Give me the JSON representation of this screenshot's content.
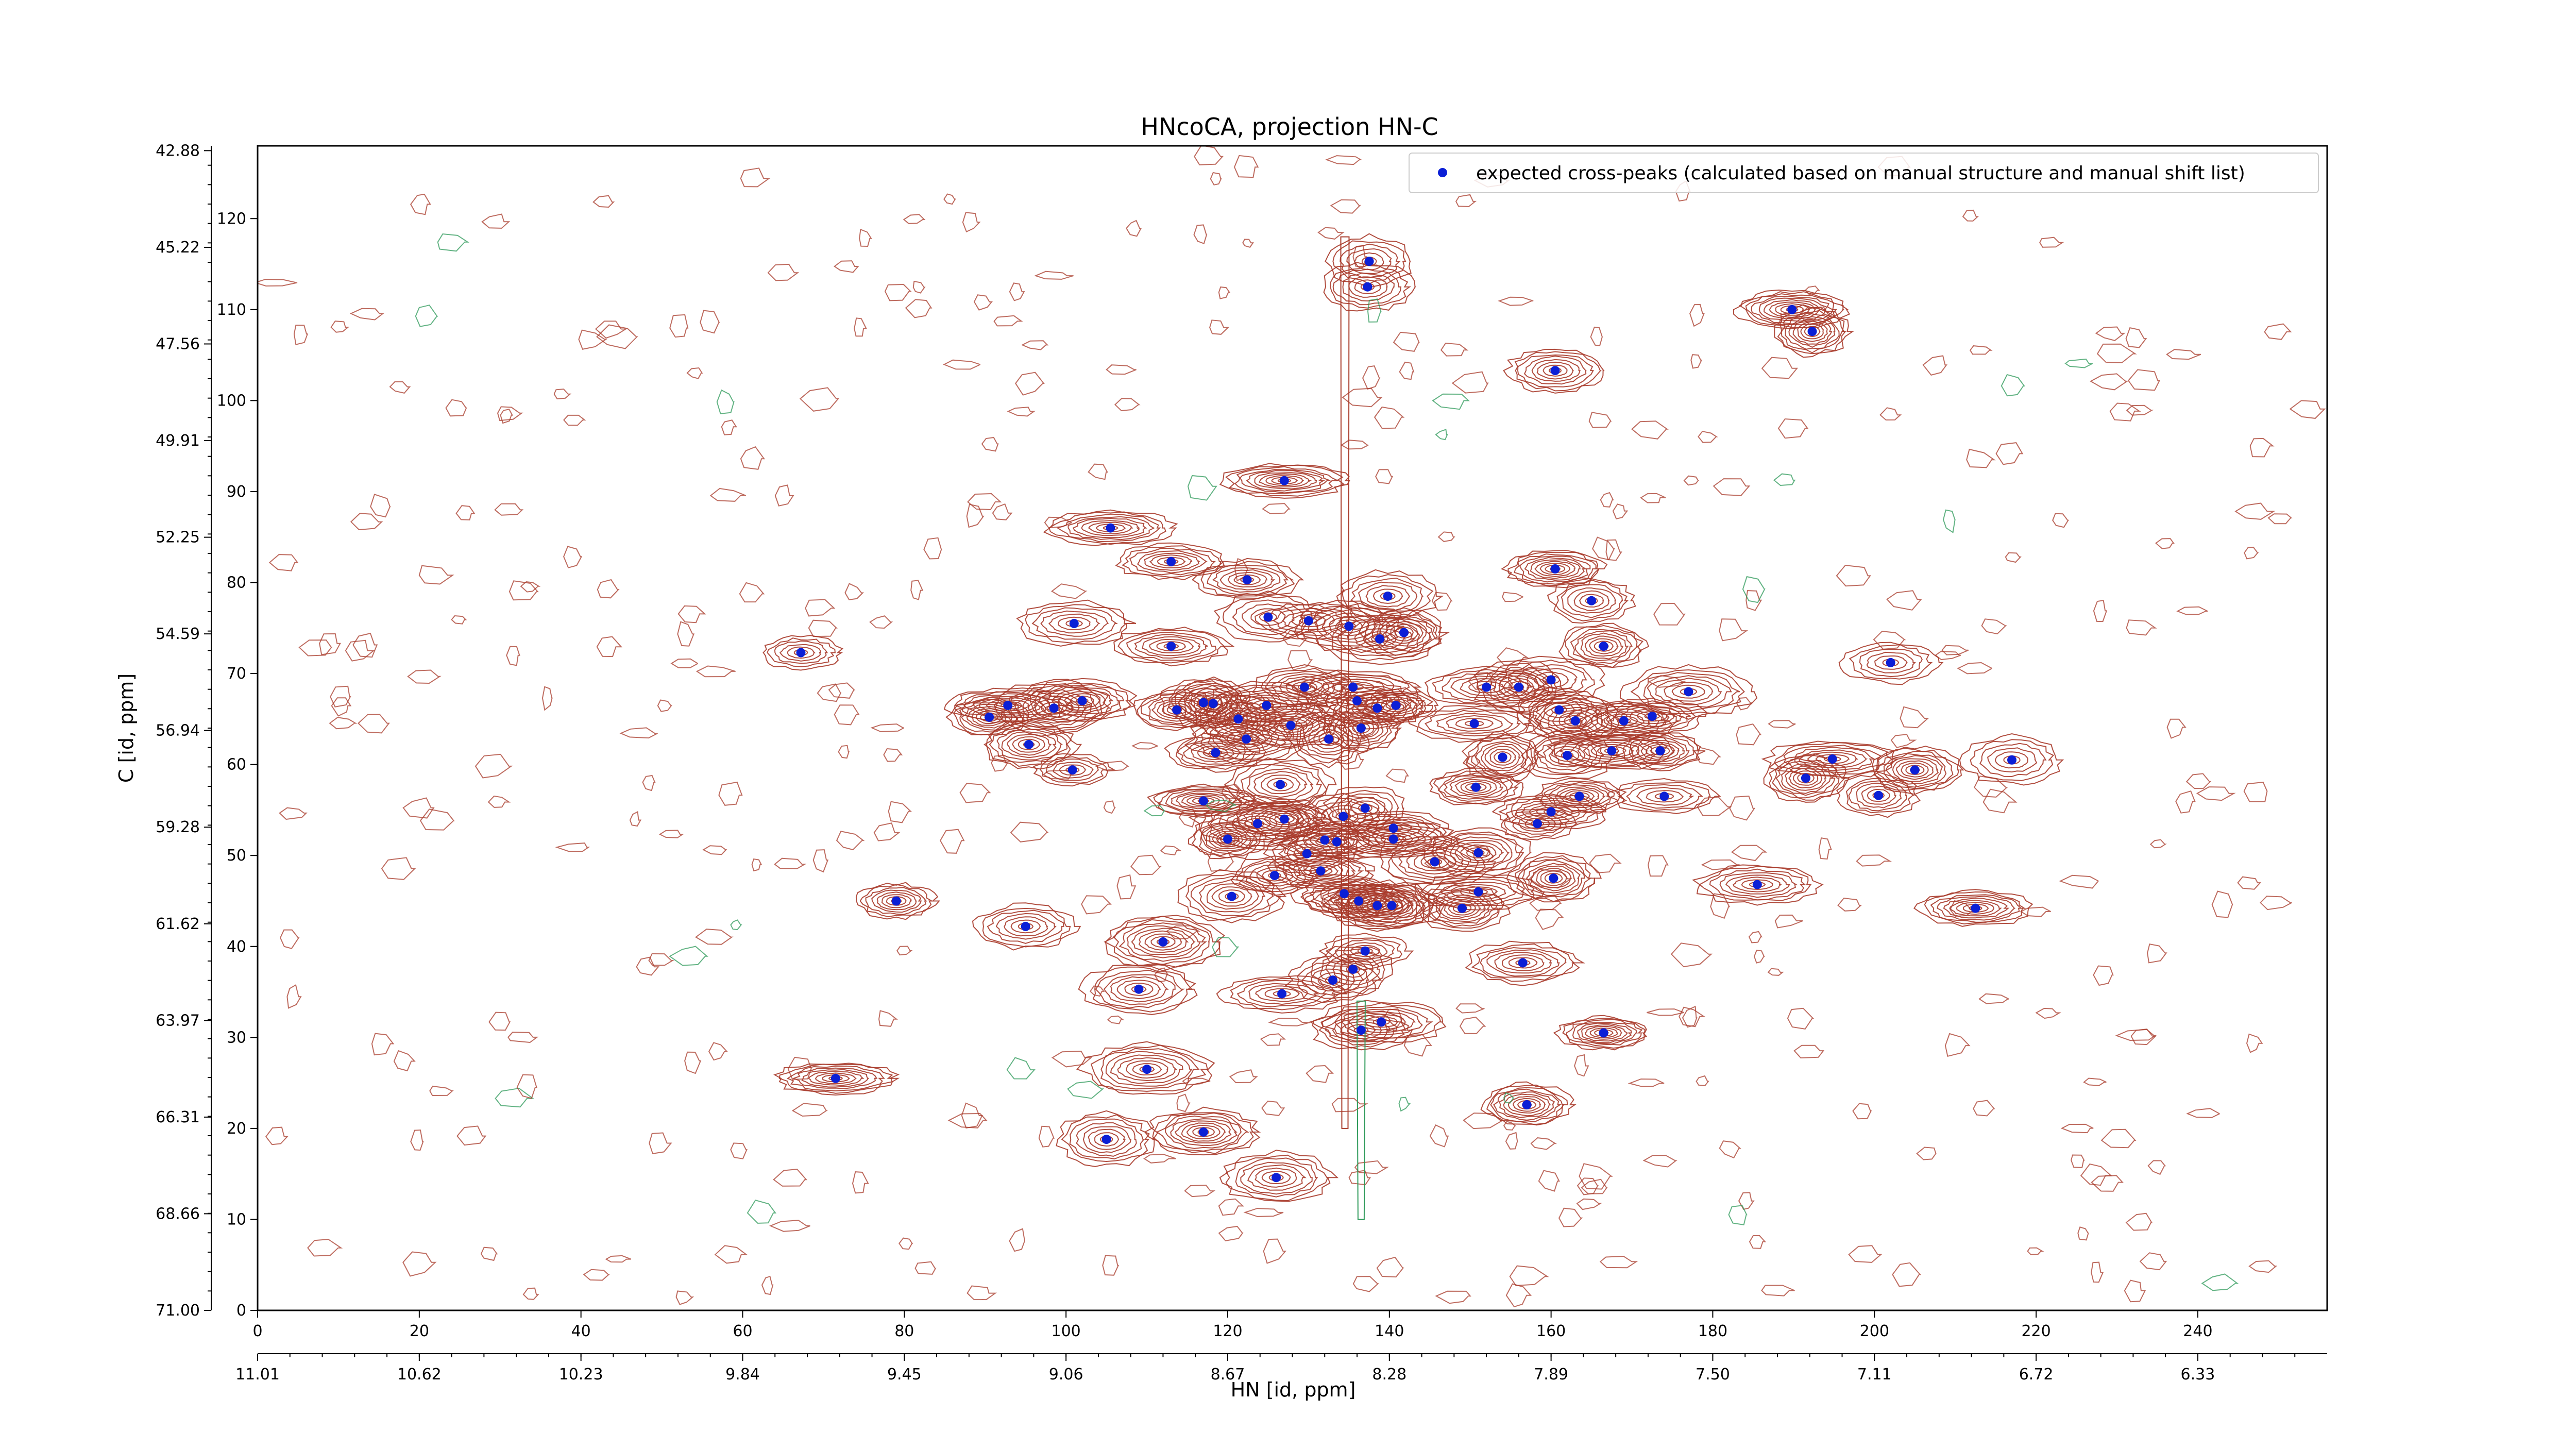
{
  "chart_data": {
    "type": "scatter",
    "title": "HNcoCA, projection HN-C",
    "xlabel": "HN [id, ppm]",
    "ylabel": "C [id, ppm]",
    "xlim": [
      0,
      256
    ],
    "ylim": [
      0,
      128
    ],
    "grid": false,
    "legend_position": "top-right",
    "x_index_ticks": [
      "0",
      "20",
      "40",
      "60",
      "80",
      "100",
      "120",
      "140",
      "160",
      "180",
      "200",
      "220",
      "240"
    ],
    "x_ppm_ticks": [
      "11.01",
      "10.62",
      "10.23",
      "9.84",
      "9.45",
      "9.06",
      "8.67",
      "8.28",
      "7.89",
      "7.50",
      "7.11",
      "6.72",
      "6.33"
    ],
    "y_index_ticks": [
      "0",
      "10",
      "20",
      "30",
      "40",
      "50",
      "60",
      "70",
      "80",
      "90",
      "100",
      "110",
      "120"
    ],
    "y_ppm_ticks": [
      "71.00",
      "68.66",
      "66.31",
      "63.97",
      "61.62",
      "59.28",
      "56.94",
      "54.59",
      "52.25",
      "49.91",
      "47.56",
      "45.22",
      "42.88"
    ],
    "colors": {
      "positive_contour": "#a83a2a",
      "negative_contour": "#2e9a5a",
      "peak_marker": "#0b1fd6"
    },
    "series": [
      {
        "name": "expected cross-peaks (calculated based on manual structure and manual shift list)",
        "points": [
          [
            137.5,
            115.3
          ],
          [
            137.3,
            112.5
          ],
          [
            127,
            91.2
          ],
          [
            105.5,
            86
          ],
          [
            113,
            82.3
          ],
          [
            122.4,
            80.3
          ],
          [
            160.5,
            81.5
          ],
          [
            139.8,
            78.5
          ],
          [
            165,
            78
          ],
          [
            101,
            75.5
          ],
          [
            125,
            76.2
          ],
          [
            130,
            75.8
          ],
          [
            135,
            75.2
          ],
          [
            138.8,
            73.8
          ],
          [
            141.8,
            74.5
          ],
          [
            113,
            73
          ],
          [
            67.2,
            72.3
          ],
          [
            166.5,
            73
          ],
          [
            202,
            71.2
          ],
          [
            129.5,
            68.5
          ],
          [
            135.5,
            68.5
          ],
          [
            152,
            68.5
          ],
          [
            156,
            68.5
          ],
          [
            160,
            69.3
          ],
          [
            177,
            68
          ],
          [
            92.8,
            66.5
          ],
          [
            98.5,
            66.2
          ],
          [
            102,
            67
          ],
          [
            117,
            66.8
          ],
          [
            118.2,
            66.7
          ],
          [
            113.7,
            66
          ],
          [
            124.8,
            66.5
          ],
          [
            136,
            67
          ],
          [
            138.5,
            66.2
          ],
          [
            140.8,
            66.5
          ],
          [
            161,
            66
          ],
          [
            150.5,
            64.5
          ],
          [
            163,
            64.8
          ],
          [
            169,
            64.8
          ],
          [
            172.5,
            65.3
          ],
          [
            90.5,
            65.2
          ],
          [
            121.3,
            65
          ],
          [
            127.8,
            64.3
          ],
          [
            136.5,
            64
          ],
          [
            132.5,
            62.8
          ],
          [
            95.4,
            62.2
          ],
          [
            122.3,
            62.8
          ],
          [
            118.5,
            61.3
          ],
          [
            167.5,
            61.5
          ],
          [
            162,
            61
          ],
          [
            154,
            60.8
          ],
          [
            100.8,
            59.4
          ],
          [
            150.7,
            57.5
          ],
          [
            126.5,
            57.8
          ],
          [
            173.5,
            61.5
          ],
          [
            194.8,
            60.6
          ],
          [
            205,
            59.4
          ],
          [
            191.5,
            58.5
          ],
          [
            217,
            60.5
          ],
          [
            200.5,
            56.6
          ],
          [
            163.5,
            56.5
          ],
          [
            174,
            56.5
          ],
          [
            117,
            56
          ],
          [
            160,
            54.8
          ],
          [
            123.7,
            53.5
          ],
          [
            137,
            55.2
          ],
          [
            158.3,
            53.5
          ],
          [
            127,
            54
          ],
          [
            134.3,
            54.3
          ],
          [
            120,
            51.8
          ],
          [
            132,
            51.7
          ],
          [
            140.5,
            53
          ],
          [
            140.5,
            51.8
          ],
          [
            151,
            50.3
          ],
          [
            133.5,
            51.5
          ],
          [
            129.8,
            50.2
          ],
          [
            145.6,
            49.3
          ],
          [
            125.8,
            47.8
          ],
          [
            131.5,
            48.3
          ],
          [
            160.3,
            47.5
          ],
          [
            185.5,
            46.8
          ],
          [
            151,
            46
          ],
          [
            120.5,
            45.5
          ],
          [
            138.5,
            44.5
          ],
          [
            134.4,
            45.8
          ],
          [
            136.2,
            45
          ],
          [
            140.3,
            44.5
          ],
          [
            79,
            45
          ],
          [
            149,
            44.2
          ],
          [
            212.5,
            44.2
          ],
          [
            95,
            42.2
          ],
          [
            112,
            40.5
          ],
          [
            137,
            39.5
          ],
          [
            135.5,
            37.5
          ],
          [
            156.5,
            38.2
          ],
          [
            109,
            35.3
          ],
          [
            126.7,
            34.8
          ],
          [
            133,
            36.3
          ],
          [
            136.5,
            30.8
          ],
          [
            139,
            31.7
          ],
          [
            166.5,
            30.5
          ],
          [
            110,
            26.5
          ],
          [
            71.5,
            25.5
          ],
          [
            157,
            22.6
          ],
          [
            105,
            18.8
          ],
          [
            117,
            19.6
          ],
          [
            126,
            14.6
          ],
          [
            189.8,
            110
          ],
          [
            192.3,
            107.6
          ],
          [
            160.5,
            103.3
          ]
        ]
      }
    ]
  },
  "legend": {
    "label": "expected cross-peaks (calculated based on manual structure and manual shift list)"
  }
}
